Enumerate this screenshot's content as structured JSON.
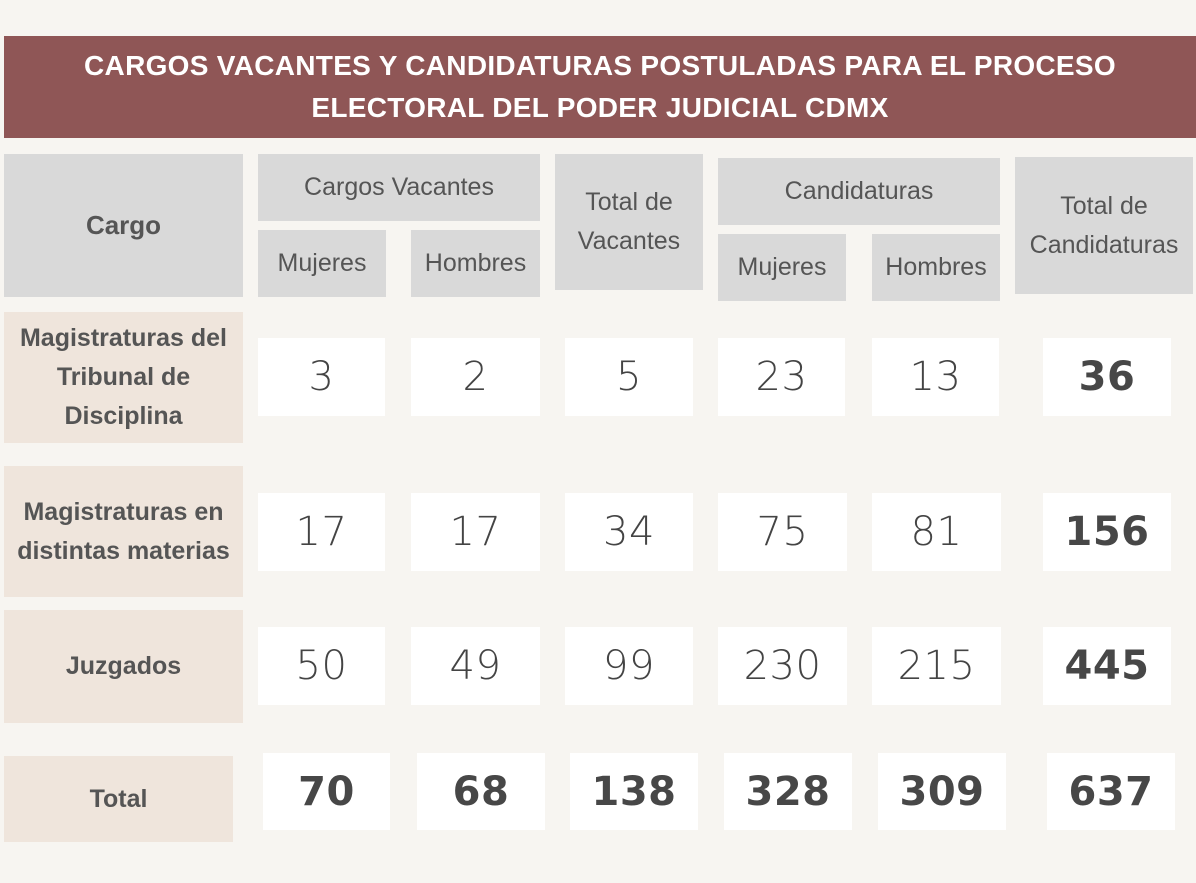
{
  "title": "CARGOS VACANTES Y CANDIDATURAS POSTULADAS PARA EL PROCESO ELECTORAL DEL PODER JUDICIAL CDMX",
  "headers": {
    "cargo": "Cargo",
    "cargos_vacantes": "Cargos Vacantes",
    "mujeres_1": "Mujeres",
    "hombres_1": "Hombres",
    "total_vacantes": "Total de Vacantes",
    "candidaturas": "Candidaturas",
    "mujeres_2": "Mujeres",
    "hombres_2": "Hombres",
    "total_candidaturas": "Total de Candidaturas"
  },
  "chart_data": {
    "type": "table",
    "title": "CARGOS VACANTES Y CANDIDATURAS POSTULADAS PARA EL PROCESO ELECTORAL DEL PODER JUDICIAL CDMX",
    "columns": [
      "Cargo",
      "Cargos Vacantes - Mujeres",
      "Cargos Vacantes - Hombres",
      "Total de Vacantes",
      "Candidaturas - Mujeres",
      "Candidaturas - Hombres",
      "Total de Candidaturas"
    ],
    "rows": [
      {
        "label": "Magistraturas del Tribunal de Disciplina",
        "values": [
          "3",
          "2",
          "5",
          "23",
          "13",
          "36"
        ]
      },
      {
        "label": "Magistraturas en distintas materias",
        "values": [
          "17",
          "17",
          "34",
          "75",
          "81",
          "156"
        ]
      },
      {
        "label": "Juzgados",
        "values": [
          "50",
          "49",
          "99",
          "230",
          "215",
          "445"
        ]
      },
      {
        "label": "Total",
        "values": [
          "70",
          "68",
          "138",
          "328",
          "309",
          "637"
        ]
      }
    ]
  }
}
